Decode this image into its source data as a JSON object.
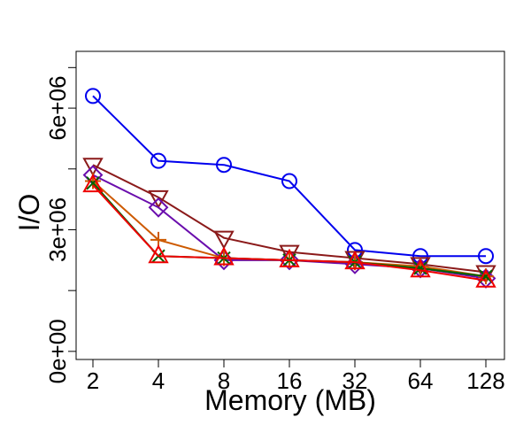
{
  "chart_data": {
    "type": "line",
    "title": "",
    "xlabel": "Memory (MB)",
    "ylabel": "I/O",
    "categories": [
      "2",
      "4",
      "8",
      "16",
      "32",
      "64",
      "128"
    ],
    "y_ticks": [
      0,
      1500000,
      3000000,
      4500000,
      6000000,
      7000000
    ],
    "y_tick_labels": [
      "0e+00",
      "",
      "3e+06",
      "",
      "6e+06",
      ""
    ],
    "ylim": [
      -200000,
      7400000
    ],
    "grid": false,
    "legend": "none",
    "series": [
      {
        "color": "#0000ee",
        "marker": "circle",
        "values": [
          6300000,
          4700000,
          4600000,
          4200000,
          2500000,
          2350000,
          2350000
        ]
      },
      {
        "color": "#8b1a1a",
        "marker": "triangle-down",
        "values": [
          4600000,
          3800000,
          2800000,
          2450000,
          2300000,
          2150000,
          1950000
        ]
      },
      {
        "color": "#6a0dad",
        "marker": "diamond",
        "values": [
          4350000,
          3550000,
          2250000,
          2250000,
          2150000,
          2050000,
          1800000
        ]
      },
      {
        "color": "#cd5a00",
        "marker": "plus",
        "values": [
          4200000,
          2750000,
          2300000,
          2250000,
          2200000,
          2100000,
          1850000
        ]
      },
      {
        "color": "#006400",
        "marker": "cross",
        "values": [
          4150000,
          2350000,
          2300000,
          2250000,
          2200000,
          2050000,
          1850000
        ]
      },
      {
        "color": "#ee0000",
        "marker": "triangle-up",
        "values": [
          4100000,
          2350000,
          2300000,
          2250000,
          2200000,
          2000000,
          1750000
        ]
      }
    ]
  }
}
